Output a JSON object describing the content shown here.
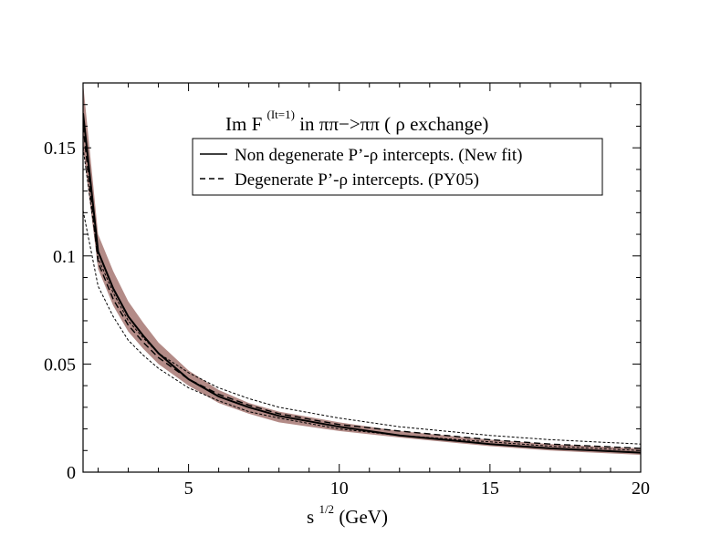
{
  "chart_data": {
    "type": "line",
    "title": {
      "prefix": "Im F",
      "superscript": "(It=1)",
      "suffix": " in  ππ−>ππ ( ρ  exchange)"
    },
    "xlabel": {
      "base": "s",
      "superscript": "1/2",
      "suffix": " (GeV)"
    },
    "ylabel": "",
    "xlim": [
      1.5,
      20
    ],
    "ylim": [
      0,
      0.18
    ],
    "x_ticks": [
      5,
      10,
      15,
      20
    ],
    "x_tick_labels": [
      "5",
      "10",
      "15",
      "20"
    ],
    "y_ticks": [
      0,
      0.05,
      0.1,
      0.15
    ],
    "y_tick_labels": [
      "0",
      "0.05",
      "0.1",
      "0.15"
    ],
    "legend": [
      {
        "label": "Non degenerate P’-ρ intercepts. (New fit)",
        "style": "solid"
      },
      {
        "label": "Degenerate P’-ρ intercepts. (PY05)",
        "style": "dashed"
      }
    ],
    "legend_position": "top-right",
    "band_color": "#b38b87",
    "line_color": "#000000",
    "x": [
      1.5,
      2,
      2.5,
      3,
      3.5,
      4,
      5,
      6,
      7,
      8,
      10,
      12,
      15,
      17,
      20
    ],
    "series": [
      {
        "name": "Non degenerate P’-ρ intercepts. (New fit)",
        "style": "solid",
        "values": [
          0.166,
          0.102,
          0.085,
          0.072,
          0.063,
          0.055,
          0.043,
          0.035,
          0.03,
          0.026,
          0.021,
          0.017,
          0.013,
          0.011,
          0.009
        ]
      },
      {
        "name": "Non degenerate band upper",
        "style": "band-upper",
        "values": [
          0.18,
          0.11,
          0.093,
          0.079,
          0.069,
          0.06,
          0.047,
          0.038,
          0.032,
          0.028,
          0.023,
          0.019,
          0.015,
          0.013,
          0.011
        ]
      },
      {
        "name": "Non degenerate band lower",
        "style": "band-lower",
        "values": [
          0.15,
          0.094,
          0.077,
          0.065,
          0.057,
          0.05,
          0.04,
          0.032,
          0.027,
          0.023,
          0.019,
          0.016,
          0.012,
          0.01,
          0.008
        ]
      },
      {
        "name": "Degenerate P’-ρ intercepts. (PY05)",
        "style": "dashed",
        "values": [
          0.16,
          0.097,
          0.08,
          0.068,
          0.06,
          0.053,
          0.043,
          0.036,
          0.031,
          0.027,
          0.022,
          0.019,
          0.015,
          0.013,
          0.011
        ]
      },
      {
        "name": "PY05 upper",
        "style": "dotted",
        "values": [
          0.15,
          0.099,
          0.083,
          0.07,
          0.062,
          0.055,
          0.046,
          0.039,
          0.034,
          0.03,
          0.025,
          0.021,
          0.017,
          0.015,
          0.013
        ]
      },
      {
        "name": "PY05 lower",
        "style": "dotted",
        "values": [
          0.121,
          0.086,
          0.072,
          0.061,
          0.054,
          0.048,
          0.039,
          0.033,
          0.028,
          0.025,
          0.02,
          0.017,
          0.014,
          0.012,
          0.01
        ]
      }
    ]
  }
}
